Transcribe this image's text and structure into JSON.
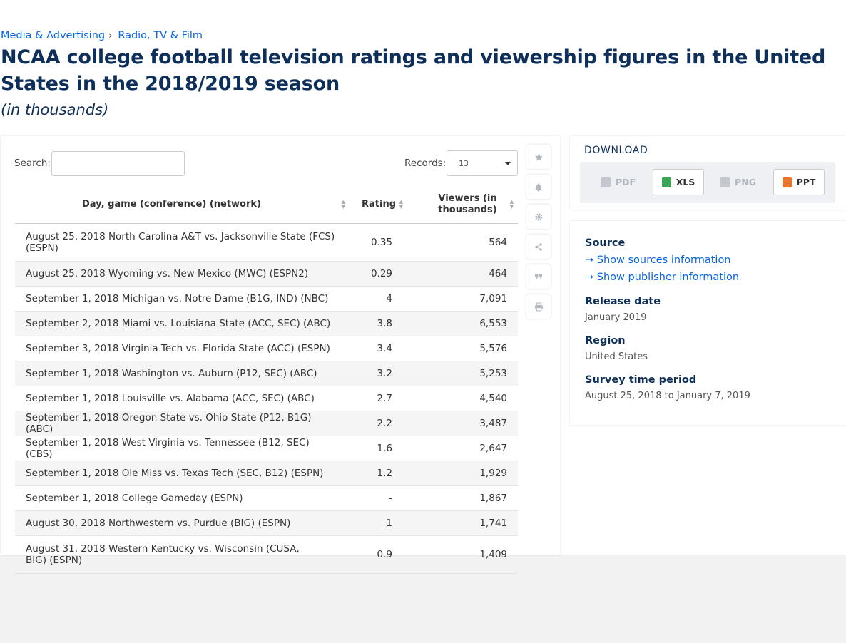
{
  "breadcrumb": {
    "item1": "Media & Advertising",
    "sep": "›",
    "item2": "Radio, TV & Film"
  },
  "title": "NCAA college football television ratings and viewership figures in the United States in the 2018/2019 season",
  "subtitle": "(in thousands)",
  "search": {
    "label": "Search:",
    "value": ""
  },
  "records": {
    "label": "Records:",
    "value": "13"
  },
  "table": {
    "headers": [
      "Day, game (conference) (network)",
      "Rating",
      "Viewers (in thousands)"
    ],
    "rows": [
      {
        "game": "August 25, 2018 North Carolina A&T vs. Jacksonville State (FCS) (ESPN)",
        "rating": "0.35",
        "viewers": "564"
      },
      {
        "game": "August 25, 2018 Wyoming vs. New Mexico (MWC) (ESPN2)",
        "rating": "0.29",
        "viewers": "464"
      },
      {
        "game": "September 1, 2018 Michigan vs. Notre Dame (B1G, IND) (NBC)",
        "rating": "4",
        "viewers": "7,091"
      },
      {
        "game": "September 2, 2018 Miami vs. Louisiana State (ACC, SEC) (ABC)",
        "rating": "3.8",
        "viewers": "6,553"
      },
      {
        "game": "September 3, 2018 Virginia Tech vs. Florida State (ACC) (ESPN)",
        "rating": "3.4",
        "viewers": "5,576"
      },
      {
        "game": "September 1, 2018 Washington vs. Auburn (P12, SEC) (ABC)",
        "rating": "3.2",
        "viewers": "5,253"
      },
      {
        "game": "September 1, 2018 Louisville vs. Alabama (ACC, SEC) (ABC)",
        "rating": "2.7",
        "viewers": "4,540"
      },
      {
        "game": "September 1, 2018 Oregon State vs. Ohio State (P12, B1G) (ABC)",
        "rating": "2.2",
        "viewers": "3,487"
      },
      {
        "game": "September 1, 2018 West Virginia vs. Tennessee (B12, SEC) (CBS)",
        "rating": "1.6",
        "viewers": "2,647"
      },
      {
        "game": "September 1, 2018 Ole Miss vs. Texas Tech (SEC, B12) (ESPN)",
        "rating": "1.2",
        "viewers": "1,929"
      },
      {
        "game": "September 1, 2018 College Gameday (ESPN)",
        "rating": "-",
        "viewers": "1,867"
      },
      {
        "game": "August 30, 2018 Northwestern vs. Purdue (BIG) (ESPN)",
        "rating": "1",
        "viewers": "1,741"
      },
      {
        "game": "August 31, 2018 Western Kentucky vs. Wisconsin (CUSA, BIG) (ESPN)",
        "rating": "0.9",
        "viewers": "1,409"
      }
    ]
  },
  "download": {
    "title": "DOWNLOAD",
    "pdf": "PDF",
    "xls": "XLS",
    "png": "PNG",
    "ppt": "PPT"
  },
  "info": {
    "source_h": "Source",
    "show_sources": "Show sources information",
    "show_publisher": "Show publisher information",
    "release_h": "Release date",
    "release_v": "January 2019",
    "region_h": "Region",
    "region_v": "United States",
    "survey_h": "Survey time period",
    "survey_v": "August 25, 2018 to January 7, 2019"
  },
  "icons": [
    "star-icon",
    "bell-icon",
    "gear-icon",
    "share-icon",
    "quote-icon",
    "print-icon"
  ],
  "colors": {
    "accent": "#0666e5",
    "title": "#0e2f5a",
    "xls": "#3aa655",
    "ppt": "#e8772e"
  }
}
